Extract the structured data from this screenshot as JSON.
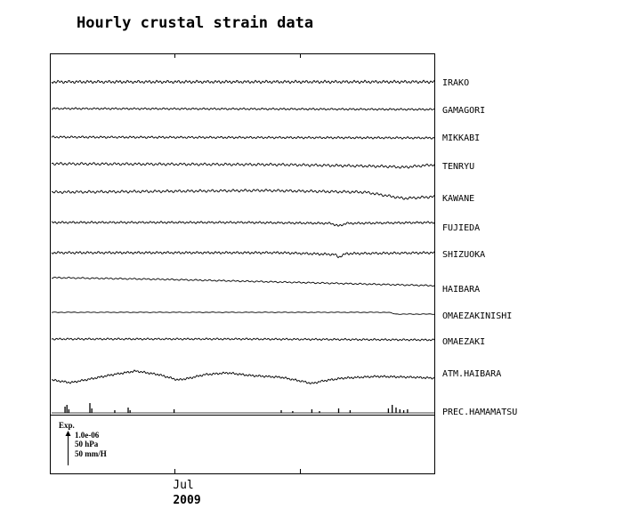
{
  "chart_data": {
    "type": "line",
    "title": "Hourly crustal strain data",
    "x_tick_label": "Jul",
    "x_year_label": "2009",
    "legend": {
      "title": "Exp.",
      "scales": [
        "1.0e-06",
        "50 hPa",
        "50 mm/H"
      ]
    },
    "series": [
      {
        "name": "IRAKO",
        "shape": "wiggle",
        "amp": 1.2,
        "freq": 0.9,
        "drift": [
          [
            0,
            0
          ],
          [
            1,
            0
          ]
        ]
      },
      {
        "name": "GAMAGORI",
        "shape": "wiggle",
        "amp": 0.8,
        "freq": 0.9,
        "drift": [
          [
            0,
            0
          ],
          [
            0.6,
            0.5
          ],
          [
            1,
            1
          ]
        ]
      },
      {
        "name": "MIKKABI",
        "shape": "wiggle",
        "amp": 0.9,
        "freq": 0.9,
        "drift": [
          [
            0,
            0
          ],
          [
            0.5,
            0.5
          ],
          [
            1,
            1
          ]
        ]
      },
      {
        "name": "TENRYU",
        "shape": "wiggle",
        "amp": 1.1,
        "freq": 0.8,
        "drift": [
          [
            0,
            0
          ],
          [
            0.6,
            1
          ],
          [
            0.87,
            3
          ],
          [
            0.92,
            4
          ],
          [
            1,
            1
          ]
        ]
      },
      {
        "name": "KAWANE",
        "shape": "wiggle",
        "amp": 1.1,
        "freq": 0.8,
        "drift": [
          [
            0,
            0
          ],
          [
            0.3,
            -1
          ],
          [
            0.55,
            -2
          ],
          [
            0.82,
            0
          ],
          [
            0.92,
            7
          ],
          [
            0.96,
            6
          ],
          [
            1,
            5
          ]
        ]
      },
      {
        "name": "FUJIEDA",
        "shape": "wiggle",
        "amp": 0.9,
        "freq": 0.9,
        "drift": [
          [
            0,
            0
          ],
          [
            0.5,
            0
          ],
          [
            0.73,
            1
          ],
          [
            0.75,
            4
          ],
          [
            0.77,
            1
          ],
          [
            1,
            0
          ]
        ]
      },
      {
        "name": "SHIZUOKA",
        "shape": "wiggle",
        "amp": 1.0,
        "freq": 0.9,
        "drift": [
          [
            0,
            0
          ],
          [
            0.6,
            0
          ],
          [
            0.74,
            2
          ],
          [
            0.75,
            5
          ],
          [
            0.77,
            1
          ],
          [
            1,
            0
          ]
        ]
      },
      {
        "name": "HAIBARA",
        "shape": "wiggle",
        "amp": 0.6,
        "freq": 0.7,
        "drift": [
          [
            0,
            -2
          ],
          [
            0.3,
            0
          ],
          [
            0.7,
            4
          ],
          [
            1,
            7
          ]
        ]
      },
      {
        "name": "OMAEZAKINISHI",
        "shape": "flat",
        "amp": 0.25,
        "freq": 0.5,
        "drift": [
          [
            0,
            0
          ],
          [
            0.88,
            0
          ],
          [
            0.9,
            2
          ],
          [
            1,
            2
          ]
        ]
      },
      {
        "name": "OMAEZAKI",
        "shape": "wiggle",
        "amp": 0.8,
        "freq": 0.9,
        "drift": [
          [
            0,
            0
          ],
          [
            0.5,
            0
          ],
          [
            1,
            1
          ]
        ]
      },
      {
        "name": "ATM.HAIBARA",
        "shape": "pressure",
        "amp": 0.9,
        "freq": 1.0,
        "drift": [
          [
            0,
            2
          ],
          [
            0.05,
            5
          ],
          [
            0.1,
            1
          ],
          [
            0.16,
            -4
          ],
          [
            0.22,
            -8
          ],
          [
            0.28,
            -4
          ],
          [
            0.33,
            2
          ],
          [
            0.36,
            0
          ],
          [
            0.4,
            -4
          ],
          [
            0.46,
            -6
          ],
          [
            0.52,
            -3
          ],
          [
            0.6,
            -1
          ],
          [
            0.66,
            4
          ],
          [
            0.68,
            6
          ],
          [
            0.71,
            3
          ],
          [
            0.76,
            0
          ],
          [
            0.85,
            -2
          ],
          [
            0.95,
            -1
          ],
          [
            1,
            0
          ]
        ]
      },
      {
        "name": "PREC.HAMAMATSU",
        "shape": "bars",
        "bars": [
          [
            0.035,
            7
          ],
          [
            0.04,
            9
          ],
          [
            0.045,
            4
          ],
          [
            0.1,
            11
          ],
          [
            0.105,
            5
          ],
          [
            0.165,
            3
          ],
          [
            0.2,
            6
          ],
          [
            0.205,
            3
          ],
          [
            0.32,
            4
          ],
          [
            0.6,
            3
          ],
          [
            0.63,
            2
          ],
          [
            0.68,
            4
          ],
          [
            0.7,
            2
          ],
          [
            0.75,
            5
          ],
          [
            0.78,
            3
          ],
          [
            0.88,
            5
          ],
          [
            0.89,
            9
          ],
          [
            0.9,
            6
          ],
          [
            0.91,
            4
          ],
          [
            0.92,
            3
          ],
          [
            0.93,
            4
          ]
        ]
      }
    ]
  }
}
